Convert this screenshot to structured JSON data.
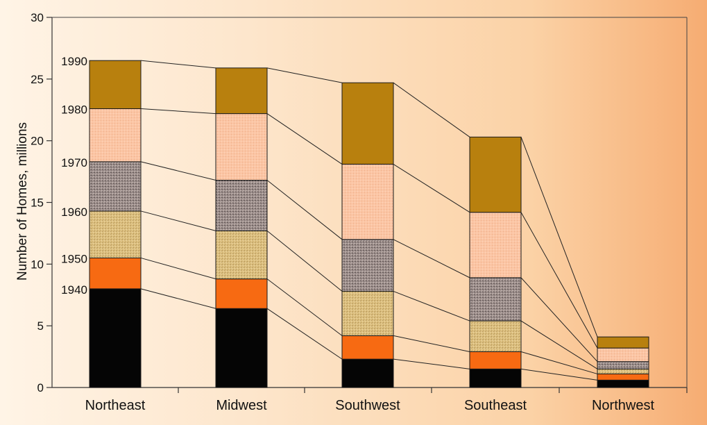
{
  "chart_data": {
    "type": "bar",
    "stacked": true,
    "title": "",
    "xlabel": "",
    "ylabel": "Number of Homes, millions",
    "ylim": [
      0,
      30
    ],
    "yticks": [
      0,
      5,
      10,
      15,
      20,
      25,
      30
    ],
    "grid": false,
    "categories": [
      "Northeast",
      "Midwest",
      "Southwest",
      "Southeast",
      "Northwest"
    ],
    "series": [
      {
        "name": "1940",
        "color": "#050505",
        "pattern": "solid",
        "values": [
          8.0,
          6.4,
          2.3,
          1.5,
          0.6
        ]
      },
      {
        "name": "1950",
        "color": "#f76a12",
        "pattern": "solid",
        "values": [
          2.5,
          2.4,
          1.9,
          1.4,
          0.5
        ]
      },
      {
        "name": "1960",
        "color": "#dcbf7f",
        "pattern": "speckle",
        "values": [
          3.8,
          3.9,
          3.6,
          2.5,
          0.4
        ]
      },
      {
        "name": "1970",
        "color": "#9c8e8b",
        "pattern": "speckle",
        "values": [
          4.0,
          4.1,
          4.2,
          3.5,
          0.6
        ]
      },
      {
        "name": "1980",
        "color": "#fbc5a4",
        "pattern": "speckle",
        "values": [
          4.3,
          5.4,
          6.1,
          5.3,
          1.1
        ]
      },
      {
        "name": "1990",
        "color": "#b8800e",
        "pattern": "solid",
        "values": [
          3.9,
          3.7,
          6.6,
          6.1,
          0.9
        ]
      }
    ],
    "year_labels": [
      "1940",
      "1950",
      "1960",
      "1970",
      "1980",
      "1990"
    ]
  }
}
